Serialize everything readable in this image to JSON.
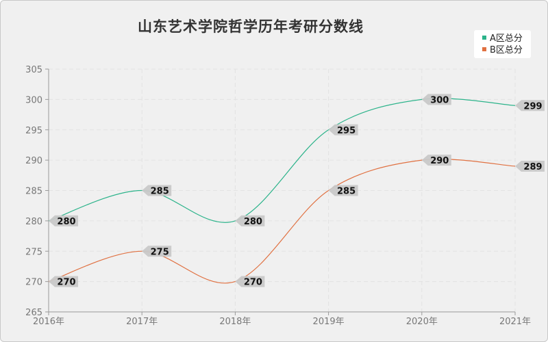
{
  "chart_data": {
    "type": "line",
    "title": "山东艺术学院哲学历年考研分数线",
    "categories": [
      "2016年",
      "2017年",
      "2018年",
      "2019年",
      "2020年",
      "2021年"
    ],
    "series": [
      {
        "name": "A区总分",
        "values": [
          280,
          285,
          280,
          295,
          300,
          299
        ],
        "color": "#2bb38a"
      },
      {
        "name": "B区总分",
        "values": [
          270,
          275,
          270,
          285,
          290,
          289
        ],
        "color": "#e07040"
      }
    ],
    "ylim": [
      265,
      305
    ],
    "yticks": [
      265,
      270,
      275,
      280,
      285,
      290,
      295,
      300,
      305
    ],
    "grid": true,
    "legend_position": "top-right",
    "smooth": true
  }
}
